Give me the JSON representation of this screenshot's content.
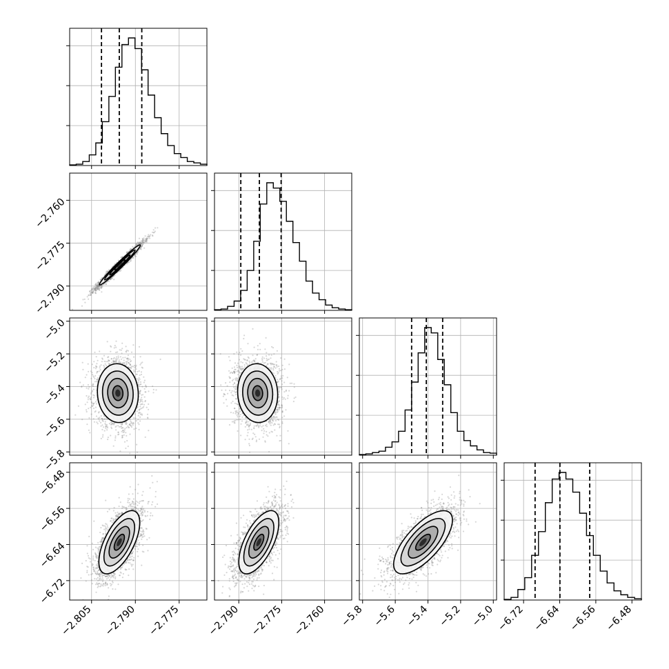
{
  "chart_data": {
    "type": "corner",
    "grid": true,
    "parameters": [
      {
        "range": [
          -2.8125,
          -2.7655
        ],
        "ticks": [
          -2.805,
          -2.79,
          -2.775
        ],
        "tick_labels": [
          "−2.805",
          "−2.790",
          "−2.775"
        ],
        "row_range": [
          -2.8125,
          -2.7655
        ],
        "row_ticks": [],
        "row_tick_labels": [],
        "quantiles": [
          -2.8016,
          -2.7955,
          -2.7878
        ],
        "hist": {
          "bin_edges_range": [
            -2.8125,
            -2.7655
          ],
          "counts": [
            0.5,
            1,
            3,
            8,
            17,
            33,
            52,
            74,
            91,
            96,
            88,
            72,
            53,
            36,
            24,
            15,
            9,
            6,
            3,
            2,
            1
          ]
        }
      },
      {
        "range": [
          -2.7985,
          -2.7505
        ],
        "ticks": [
          -2.79,
          -2.775,
          -2.76
        ],
        "tick_labels": [
          "−2.790",
          "−2.775",
          "−2.760"
        ],
        "row_ticks": [
          -2.76,
          -2.775,
          -2.79
        ],
        "row_tick_labels": [
          "−2.760",
          "−2.775",
          "−2.790"
        ],
        "quantiles": [
          -2.7893,
          -2.7828,
          -2.7752
        ],
        "hist": {
          "counts": [
            0.5,
            1,
            3,
            7,
            15,
            30,
            52,
            80,
            96,
            92,
            82,
            67,
            51,
            37,
            22,
            13,
            8,
            4,
            2,
            1,
            0.5
          ]
        }
      },
      {
        "range": [
          -5.82,
          -4.98
        ],
        "ticks": [
          -5.8,
          -5.6,
          -5.4,
          -5.2,
          -5.0
        ],
        "tick_labels": [
          "−5.8",
          "−5.6",
          "−5.4",
          "−5.2",
          "−5.0"
        ],
        "row_ticks": [
          -5.0,
          -5.2,
          -5.4,
          -5.6,
          -5.8
        ],
        "row_tick_labels": [
          "−5.0",
          "−5.2",
          "−5.4",
          "−5.6",
          "−5.8"
        ],
        "quantiles": [
          -5.5,
          -5.41,
          -5.31
        ],
        "hist": {
          "counts": [
            0.5,
            1,
            2,
            3,
            6,
            10,
            18,
            34,
            55,
            77,
            96,
            92,
            72,
            53,
            32,
            18,
            11,
            7,
            4,
            2,
            1.5
          ]
        }
      },
      {
        "range": [
          -6.763,
          -6.459
        ],
        "ticks": [
          -6.72,
          -6.64,
          -6.56,
          -6.48
        ],
        "tick_labels": [
          "−6.72",
          "−6.64",
          "−6.56",
          "−6.48"
        ],
        "row_ticks": [
          -6.48,
          -6.56,
          -6.64,
          -6.72
        ],
        "row_tick_labels": [
          "−6.48",
          "−6.56",
          "−6.64",
          "−6.72"
        ],
        "quantiles": [
          -6.6945,
          -6.6395,
          -6.5735
        ],
        "hist": {
          "counts": [
            0.5,
            2,
            8,
            17,
            34,
            52,
            74,
            92,
            97,
            92,
            82,
            66,
            49,
            34,
            22,
            13,
            7,
            4,
            2,
            1
          ]
        }
      }
    ],
    "pairs": [
      {
        "row": 1,
        "col": 0,
        "center": [
          -2.7953,
          -2.7826
        ],
        "sigma": [
          0.0035,
          0.0035
        ],
        "correlation": 0.98
      },
      {
        "row": 2,
        "col": 0,
        "center": [
          -2.796,
          -5.44
        ],
        "sigma": [
          0.0035,
          0.09
        ],
        "correlation": -0.05
      },
      {
        "row": 2,
        "col": 1,
        "center": [
          -2.7834,
          -5.44
        ],
        "sigma": [
          0.0035,
          0.09
        ],
        "correlation": -0.05
      },
      {
        "row": 3,
        "col": 0,
        "center": [
          -2.7955,
          -6.635
        ],
        "sigma": [
          0.0035,
          0.035
        ],
        "correlation": 0.62
      },
      {
        "row": 3,
        "col": 1,
        "center": [
          -2.783,
          -6.635
        ],
        "sigma": [
          0.0035,
          0.035
        ],
        "correlation": 0.62
      },
      {
        "row": 3,
        "col": 2,
        "center": [
          -5.43,
          -6.635
        ],
        "sigma": [
          0.09,
          0.035
        ],
        "correlation": 0.7
      }
    ],
    "contour_levels_sigma": [
      0.5,
      1.0,
      1.5,
      2.0
    ]
  }
}
